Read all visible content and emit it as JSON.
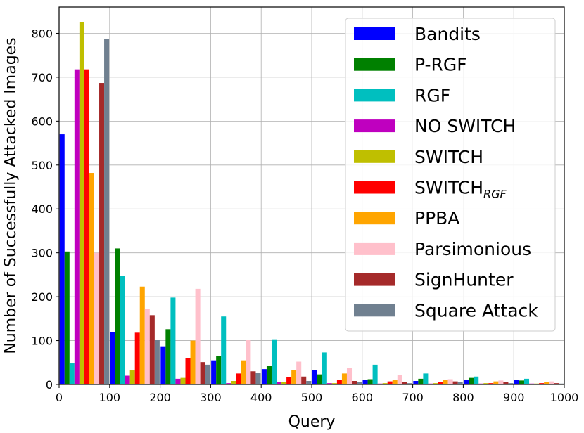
{
  "chart_data": {
    "type": "bar",
    "xlabel": "Query",
    "ylabel": "Number of Successfully Attacked Images",
    "xlim": [
      0,
      1000
    ],
    "ylim": [
      0,
      860
    ],
    "xticks": [
      0,
      100,
      200,
      300,
      400,
      500,
      600,
      700,
      800,
      900,
      1000
    ],
    "yticks": [
      0,
      100,
      200,
      300,
      400,
      500,
      600,
      700,
      800
    ],
    "grid": true,
    "legend_position": "top-right",
    "bin_width": 100,
    "categories": [
      "0-100",
      "100-200",
      "200-300",
      "300-400",
      "400-500",
      "500-600",
      "600-700",
      "700-800",
      "800-900",
      "900-1000"
    ],
    "series": [
      {
        "name": "Bandits",
        "label_main": "Bandits",
        "label_sub": "",
        "color": "#0000ff",
        "values": [
          570,
          120,
          87,
          55,
          35,
          33,
          10,
          8,
          10,
          10
        ]
      },
      {
        "name": "P-RGF",
        "label_main": "P-RGF",
        "label_sub": "",
        "color": "#008000",
        "values": [
          303,
          310,
          126,
          65,
          42,
          23,
          12,
          13,
          15,
          9
        ]
      },
      {
        "name": "RGF",
        "label_main": "RGF",
        "label_sub": "",
        "color": "#00bfbf",
        "values": [
          48,
          248,
          198,
          155,
          103,
          73,
          45,
          25,
          18,
          13
        ]
      },
      {
        "name": "NO SWITCH",
        "label_main": "NO SWITCH",
        "label_sub": "",
        "color": "#bf00bf",
        "values": [
          718,
          20,
          13,
          3,
          5,
          3,
          2,
          2,
          2,
          2
        ]
      },
      {
        "name": "SWITCH",
        "label_main": "SWITCH",
        "label_sub": "",
        "color": "#bfbf00",
        "values": [
          825,
          32,
          15,
          8,
          5,
          3,
          3,
          3,
          3,
          2
        ]
      },
      {
        "name": "SWITCH_RGF",
        "label_main": "SWITCH",
        "label_sub": "RGF",
        "color": "#ff0000",
        "values": [
          718,
          118,
          60,
          25,
          17,
          10,
          7,
          5,
          3,
          3
        ]
      },
      {
        "name": "PPBA",
        "label_main": "PPBA",
        "label_sub": "",
        "color": "#ffa500",
        "values": [
          482,
          223,
          100,
          55,
          33,
          25,
          10,
          10,
          7,
          5
        ]
      },
      {
        "name": "Parsimonious",
        "label_main": "Parsimonious",
        "label_sub": "",
        "color": "#ffc0cb",
        "values": [
          300,
          172,
          218,
          102,
          52,
          38,
          22,
          12,
          9,
          7
        ]
      },
      {
        "name": "SignHunter",
        "label_main": "SignHunter",
        "label_sub": "",
        "color": "#a52a2a",
        "values": [
          687,
          158,
          51,
          30,
          18,
          8,
          6,
          7,
          5,
          3
        ]
      },
      {
        "name": "Square Attack",
        "label_main": "Square Attack",
        "label_sub": "",
        "color": "#708090",
        "values": [
          787,
          102,
          45,
          27,
          8,
          6,
          3,
          5,
          3,
          2
        ]
      }
    ]
  }
}
